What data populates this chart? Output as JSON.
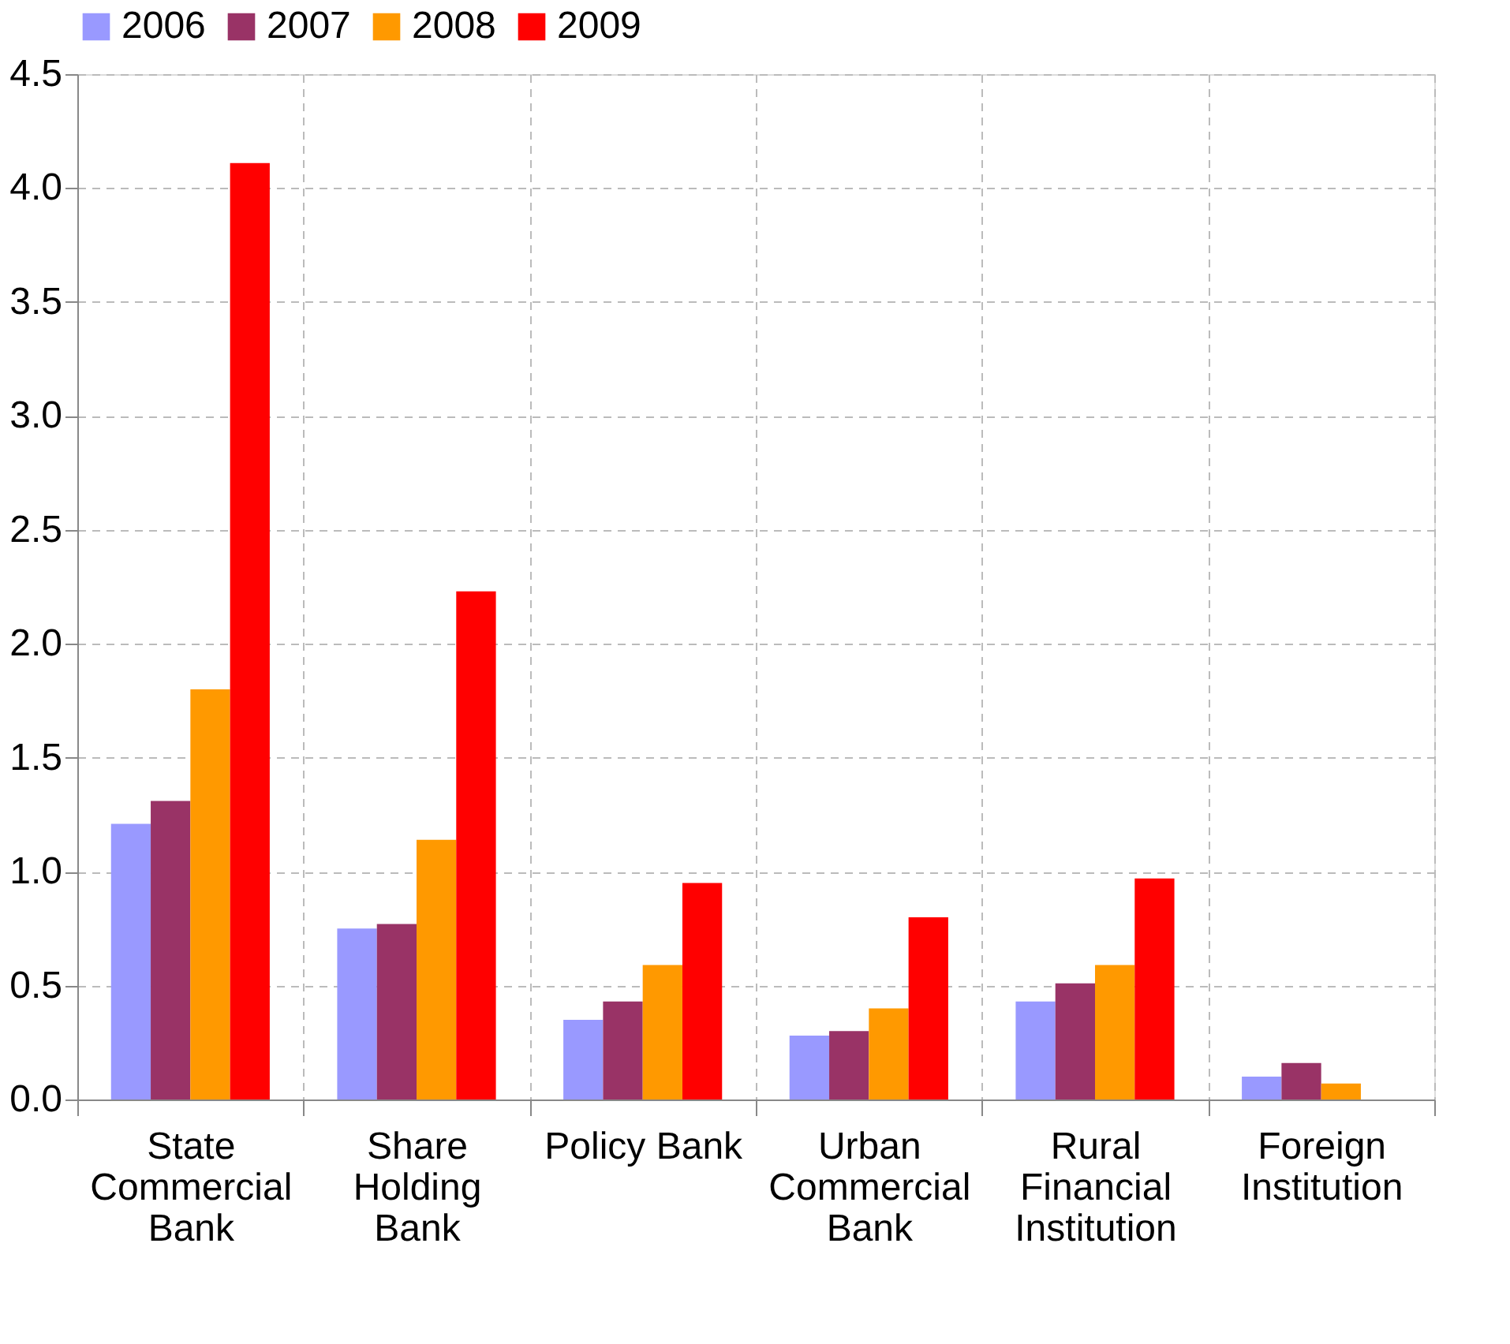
{
  "chart_data": {
    "type": "bar",
    "categories": [
      "State\nCommercial\nBank",
      "Share\nHolding\nBank",
      "Policy Bank",
      "Urban\nCommercial\nBank",
      "Rural\nFinancial\nInstitution",
      "Foreign\nInstitution"
    ],
    "series": [
      {
        "name": "2006",
        "color": "#9999ff",
        "values": [
          1.21,
          0.75,
          0.35,
          0.28,
          0.43,
          0.1
        ]
      },
      {
        "name": "2007",
        "color": "#993366",
        "values": [
          1.31,
          0.77,
          0.43,
          0.3,
          0.51,
          0.16
        ]
      },
      {
        "name": "2008",
        "color": "#ff9900",
        "values": [
          1.8,
          1.14,
          0.59,
          0.4,
          0.59,
          0.07
        ]
      },
      {
        "name": "2009",
        "color": "#ff0000",
        "values": [
          4.11,
          2.23,
          0.95,
          0.8,
          0.97,
          null
        ]
      }
    ],
    "ylim": [
      0,
      4.5
    ],
    "yticks": [
      {
        "value": 0,
        "label": "0.0"
      },
      {
        "value": 0.5,
        "label": "0.5"
      },
      {
        "value": 1,
        "label": "1.0"
      },
      {
        "value": 1.5,
        "label": "1.5"
      },
      {
        "value": 2,
        "label": "2.0"
      },
      {
        "value": 2.5,
        "label": "2.5"
      },
      {
        "value": 3,
        "label": "3.0"
      },
      {
        "value": 3.5,
        "label": "3.5"
      },
      {
        "value": 4,
        "label": "4.0"
      },
      {
        "value": 4.5,
        "label": "4.5"
      }
    ],
    "grid": true,
    "legend": "top"
  }
}
